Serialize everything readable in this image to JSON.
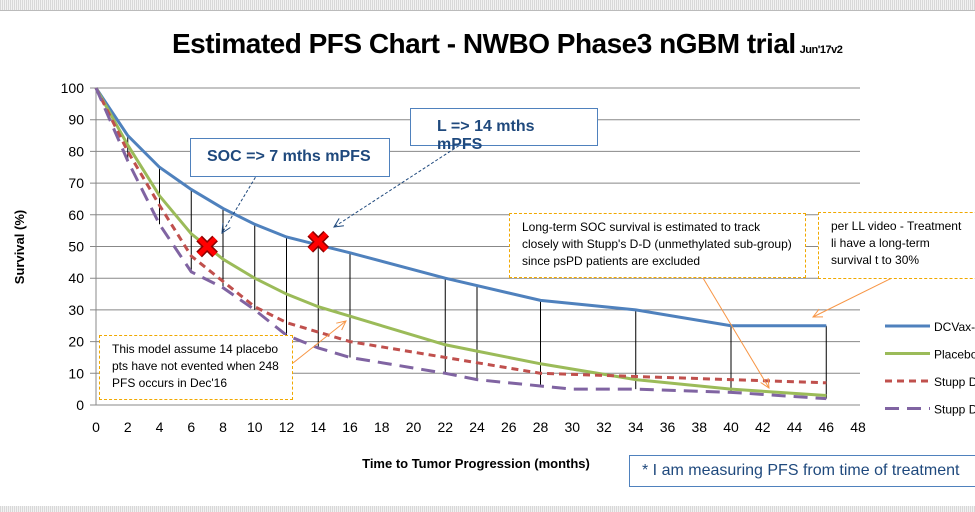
{
  "title": "Estimated PFS Chart - NWBO Phase3 nGBM trial",
  "title_suffix": "Jun'17v2",
  "chart_data": {
    "type": "line",
    "xlabel": "Time to Tumor Progression (months)",
    "ylabel": "Survival (%)",
    "xlim": [
      0,
      48
    ],
    "ylim": [
      0,
      100
    ],
    "xticks": [
      0,
      2,
      4,
      6,
      8,
      10,
      12,
      14,
      16,
      18,
      20,
      22,
      24,
      26,
      28,
      30,
      32,
      34,
      36,
      38,
      40,
      42,
      44,
      46,
      48
    ],
    "yticks": [
      0,
      10,
      20,
      30,
      40,
      50,
      60,
      70,
      80,
      90,
      100
    ],
    "grid": "horizontal",
    "legend": "right",
    "series": [
      {
        "name": "DCVax-",
        "color": "#4f81bd",
        "style": "solid",
        "x": [
          0,
          2,
          4,
          6,
          8,
          10,
          12,
          14,
          16,
          22,
          28,
          34,
          40,
          46
        ],
        "y": [
          100,
          85,
          75,
          68,
          62,
          57,
          53,
          50.5,
          48,
          40,
          33,
          30,
          25,
          25
        ]
      },
      {
        "name": "Placebo",
        "color": "#9bbb59",
        "style": "solid",
        "x": [
          0,
          2,
          4,
          6,
          8,
          10,
          12,
          14,
          16,
          22,
          24,
          28,
          34,
          40,
          46
        ],
        "y": [
          100,
          82,
          66,
          54,
          46,
          40,
          35,
          31,
          28,
          19,
          17,
          13,
          8,
          5,
          3
        ]
      },
      {
        "name": "Stupp D",
        "color": "#c0504d",
        "style": "dash",
        "x": [
          0,
          2,
          4,
          6,
          8,
          10,
          12,
          14,
          16,
          22,
          28,
          34,
          40,
          46
        ],
        "y": [
          100,
          80,
          63,
          47,
          39,
          31,
          26,
          23,
          20,
          15,
          10,
          9,
          8,
          7
        ]
      },
      {
        "name": "Stupp D",
        "color": "#8064a2",
        "style": "longdash",
        "x": [
          0,
          2,
          4,
          6,
          8,
          10,
          12,
          14,
          16,
          22,
          24,
          28,
          30,
          34,
          40,
          46
        ],
        "y": [
          100,
          77,
          57,
          42,
          37,
          30,
          22,
          18,
          15,
          10,
          8,
          6,
          5,
          5,
          4,
          2
        ]
      }
    ],
    "drop_lines_x": [
      2,
      4,
      6,
      8,
      10,
      12,
      14,
      16,
      22,
      24,
      28,
      34,
      40,
      46
    ],
    "markers": [
      {
        "x": 7,
        "y": 50,
        "symbol": "x",
        "color": "#ff0000"
      },
      {
        "x": 14,
        "y": 51.5,
        "symbol": "x",
        "color": "#ff0000"
      }
    ]
  },
  "annotations": {
    "soc": "SOC => 7 mths mPFS",
    "l": "L => 14 mths mPFS",
    "model": "This model assume 14 placebo pts have not evented when 248 PFS occurs in Dec'16",
    "longterm": "Long-term SOC survival is estimated to track closely with Stupp's D-D (unmethylated sub-group) since psPD patients are excluded",
    "perll": "per LL video - Treatment li have a long-term survival t to 30%",
    "footnote": "* I am measuring PFS from time of treatment"
  }
}
